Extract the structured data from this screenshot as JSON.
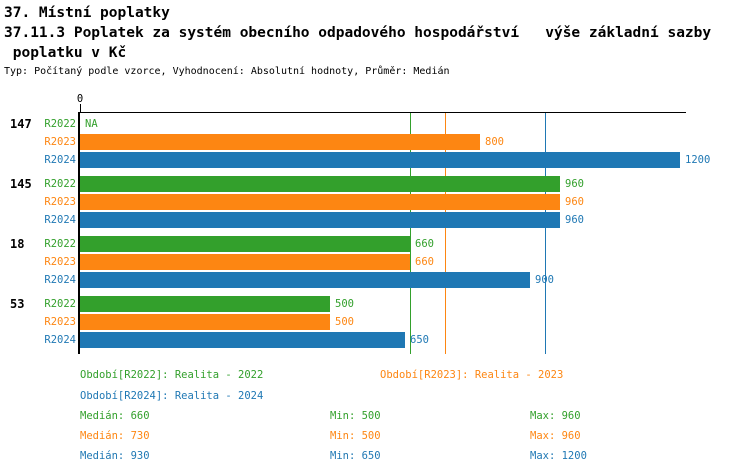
{
  "header": {
    "title_line1": "37. Místní poplatky",
    "title_line2": "37.11.3 Poplatek za systém obecního odpadového hospodářství   výše základní sazby",
    "title_line3": " poplatku v Kč",
    "subtitle": "Typ: Počítaný podle vzorce, Vyhodnocení: Absolutní hodnoty, Průměr: Medián"
  },
  "colors": {
    "R2022": "#33a02c",
    "R2023": "#fd8612",
    "R2024": "#1f78b4",
    "axis": "#000000"
  },
  "chart_data": {
    "type": "bar",
    "orientation": "horizontal",
    "x_axis": {
      "origin_label": "0",
      "min": 0,
      "max": 1212,
      "grid": false
    },
    "series_names": [
      "R2022",
      "R2023",
      "R2024"
    ],
    "categories": [
      "147",
      "145",
      "18",
      "53"
    ],
    "groups": [
      {
        "category": "147",
        "rows": [
          {
            "series": "R2022",
            "value": null,
            "label": "NA"
          },
          {
            "series": "R2023",
            "value": 800,
            "label": "800"
          },
          {
            "series": "R2024",
            "value": 1200,
            "label": "1200"
          }
        ]
      },
      {
        "category": "145",
        "rows": [
          {
            "series": "R2022",
            "value": 960,
            "label": "960"
          },
          {
            "series": "R2023",
            "value": 960,
            "label": "960"
          },
          {
            "series": "R2024",
            "value": 960,
            "label": "960"
          }
        ]
      },
      {
        "category": "18",
        "rows": [
          {
            "series": "R2022",
            "value": 660,
            "label": "660"
          },
          {
            "series": "R2023",
            "value": 660,
            "label": "660"
          },
          {
            "series": "R2024",
            "value": 900,
            "label": "900"
          }
        ]
      },
      {
        "category": "53",
        "rows": [
          {
            "series": "R2022",
            "value": 500,
            "label": "500"
          },
          {
            "series": "R2023",
            "value": 500,
            "label": "500"
          },
          {
            "series": "R2024",
            "value": 650,
            "label": "650"
          }
        ]
      }
    ],
    "median_lines": [
      {
        "series": "R2022",
        "value": 660
      },
      {
        "series": "R2023",
        "value": 730
      },
      {
        "series": "R2024",
        "value": 930
      }
    ]
  },
  "legend": {
    "items": [
      {
        "series": "R2022",
        "text": "Období[R2022]: Realita - 2022"
      },
      {
        "series": "R2023",
        "text": "Období[R2023]: Realita - 2023"
      },
      {
        "series": "R2024",
        "text": "Období[R2024]: Realita - 2024"
      }
    ]
  },
  "stats": {
    "rows": [
      {
        "series": "R2022",
        "median": "Medián: 660",
        "min": "Min: 500",
        "max": "Max: 960"
      },
      {
        "series": "R2023",
        "median": "Medián: 730",
        "min": "Min: 500",
        "max": "Max: 960"
      },
      {
        "series": "R2024",
        "median": "Medián: 930",
        "min": "Min: 650",
        "max": "Max: 1200"
      }
    ]
  }
}
